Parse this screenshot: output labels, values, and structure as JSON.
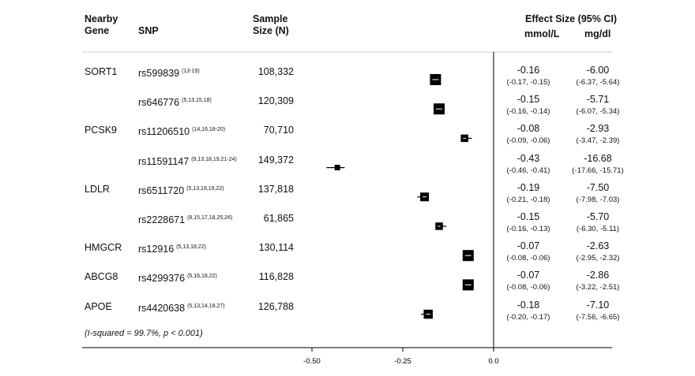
{
  "headers": {
    "gene_line1": "Nearby",
    "gene_line2": "Gene",
    "snp": "SNP",
    "size_line1": "Sample",
    "size_line2": "Size (N)",
    "effect": "Effect Size (95% CI)",
    "unit_mmol": "mmol/L",
    "unit_mg": "mg/dl"
  },
  "rows": [
    {
      "gene": "SORT1",
      "snp": "rs599839",
      "refs": "(13-19)",
      "n": "108,332",
      "mmol": "-0.16",
      "mmol_ci": "(-0.17, -0.15)",
      "mg": "-6.00",
      "mg_ci": "(-6.37, -5.64)"
    },
    {
      "gene": "",
      "snp": "rs646776",
      "refs": "(5,13,15,18)",
      "n": "120,309",
      "mmol": "-0.15",
      "mmol_ci": "(-0.16, -0.14)",
      "mg": "-5.71",
      "mg_ci": "(-6.07, -5.34)"
    },
    {
      "gene": "PCSK9",
      "snp": "rs11206510",
      "refs": "(14,16,18-20)",
      "n": "70,710",
      "mmol": "-0.08",
      "mmol_ci": "(-0.09, -0.06)",
      "mg": "-2.93",
      "mg_ci": "(-3.47, -2.39)"
    },
    {
      "gene": "",
      "snp": "rs11591147",
      "refs": "(9,13,18,19,21-24)",
      "n": "149,372",
      "mmol": "-0.43",
      "mmol_ci": "(-0.46, -0.41)",
      "mg": "-16.68",
      "mg_ci": "(-17.66, -15.71)"
    },
    {
      "gene": "LDLR",
      "snp": "rs6511720",
      "refs": "(5,13,18,19,22)",
      "n": "137,818",
      "mmol": "-0.19",
      "mmol_ci": "(-0.21, -0.18)",
      "mg": "-7.50",
      "mg_ci": "(-7.98, -7.03)"
    },
    {
      "gene": "",
      "snp": "rs2228671",
      "refs": "(8,15,17,18,25,26)",
      "n": "61,865",
      "mmol": "-0.15",
      "mmol_ci": "(-0.16, -0.13)",
      "mg": "-5.70",
      "mg_ci": "(-6.30, -5.11)"
    },
    {
      "gene": "HMGCR",
      "snp": "rs12916",
      "refs": "(5,13,18,22)",
      "n": "130,114",
      "mmol": "-0.07",
      "mmol_ci": "(-0.08, -0.06)",
      "mg": "-2.63",
      "mg_ci": "(-2.95, -2.32)"
    },
    {
      "gene": "ABCG8",
      "snp": "rs4299376",
      "refs": "(5,16,18,22)",
      "n": "116,828",
      "mmol": "-0.07",
      "mmol_ci": "(-0.08, -0.06)",
      "mg": "-2.86",
      "mg_ci": "(-3.22, -2.51)"
    },
    {
      "gene": "APOE",
      "snp": "rs4420638",
      "refs": "(5,13,14,18,27)",
      "n": "126,788",
      "mmol": "-0.18",
      "mmol_ci": "(-0.20, -0.17)",
      "mg": "-7.10",
      "mg_ci": "(-7.56, -6.65)"
    }
  ],
  "heterogeneity_note": "(I-squared = 99.7%, p < 0.001)",
  "chart_data": {
    "type": "forest",
    "xlim": [
      -0.5,
      0.0
    ],
    "xticks": [
      -0.5,
      -0.25,
      0.0
    ],
    "xtick_labels": [
      "-0.50",
      "-0.25",
      "0.0"
    ],
    "reference_line": 0.0,
    "points": [
      {
        "snp": "rs599839",
        "estimate": -0.16,
        "lower": -0.17,
        "upper": -0.15,
        "n": 108332
      },
      {
        "snp": "rs646776",
        "estimate": -0.15,
        "lower": -0.16,
        "upper": -0.14,
        "n": 120309
      },
      {
        "snp": "rs11206510",
        "estimate": -0.08,
        "lower": -0.09,
        "upper": -0.06,
        "n": 70710
      },
      {
        "snp": "rs11591147",
        "estimate": -0.43,
        "lower": -0.46,
        "upper": -0.41,
        "n": 149372
      },
      {
        "snp": "rs6511720",
        "estimate": -0.19,
        "lower": -0.21,
        "upper": -0.18,
        "n": 137818
      },
      {
        "snp": "rs2228671",
        "estimate": -0.15,
        "lower": -0.16,
        "upper": -0.13,
        "n": 61865
      },
      {
        "snp": "rs12916",
        "estimate": -0.07,
        "lower": -0.08,
        "upper": -0.06,
        "n": 130114
      },
      {
        "snp": "rs4299376",
        "estimate": -0.07,
        "lower": -0.08,
        "upper": -0.06,
        "n": 116828
      },
      {
        "snp": "rs4420638",
        "estimate": -0.18,
        "lower": -0.2,
        "upper": -0.17,
        "n": 126788
      }
    ],
    "marker_sizes": [
      1,
      1,
      0.55,
      0.3,
      0.7,
      0.55,
      1,
      1,
      0.75
    ],
    "color": "#000000"
  }
}
